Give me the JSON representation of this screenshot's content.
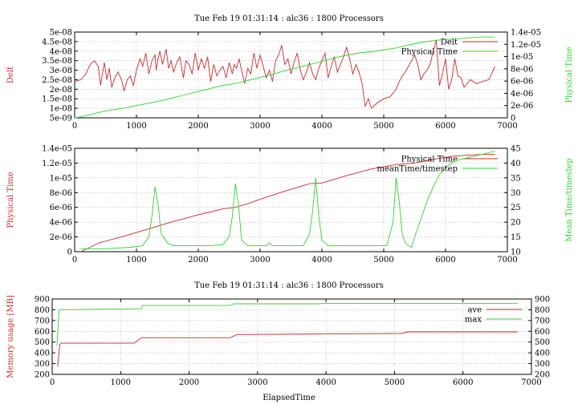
{
  "chart_data": [
    {
      "type": "line",
      "title": "Tue Feb 19 01:31:14 : alc36 : 1800 Processors",
      "xlabel": "",
      "ylabel": "Delt",
      "y2label": "Physical Time",
      "xlim": [
        0,
        7000
      ],
      "ylim": [
        5e-09,
        5e-08
      ],
      "y2lim": [
        0,
        1.4e-05
      ],
      "xticks": [
        "0",
        "1000",
        "2000",
        "3000",
        "4000",
        "5000",
        "6000",
        "7000"
      ],
      "yticks": [
        "5e-09",
        "1e-08",
        "1.5e-08",
        "2e-08",
        "2.5e-08",
        "3e-08",
        "3.5e-08",
        "4e-08",
        "4.5e-08",
        "5e-08"
      ],
      "y2ticks": [
        "0",
        "2e-06",
        "4e-06",
        "6e-06",
        "8e-06",
        "1e-05",
        "1.2e-05",
        "1.4e-05"
      ],
      "legend_position": "top-right",
      "series": [
        {
          "name": "Delt",
          "axis": "y",
          "color": "#cc2a2a",
          "x": [
            0,
            100,
            180,
            250,
            320,
            380,
            420,
            480,
            520,
            560,
            600,
            650,
            700,
            760,
            800,
            850,
            900,
            950,
            1000,
            1030,
            1060,
            1100,
            1150,
            1200,
            1250,
            1300,
            1320,
            1350,
            1380,
            1420,
            1450,
            1480,
            1520,
            1560,
            1600,
            1650,
            1700,
            1760,
            1800,
            1850,
            1900,
            1950,
            2000,
            2050,
            2100,
            2150,
            2200,
            2250,
            2300,
            2350,
            2400,
            2450,
            2500,
            2550,
            2580,
            2620,
            2660,
            2700,
            2750,
            2800,
            2850,
            2900,
            2950,
            3000,
            3050,
            3100,
            3150,
            3200,
            3250,
            3300,
            3350,
            3400,
            3450,
            3500,
            3550,
            3600,
            3650,
            3700,
            3750,
            3800,
            3850,
            3900,
            3950,
            4000,
            4050,
            4100,
            4150,
            4200,
            4250,
            4300,
            4350,
            4400,
            4450,
            4500,
            4550,
            4600,
            4650,
            4700,
            4750,
            4800,
            4900,
            5000,
            5100,
            5200,
            5250,
            5300,
            5350,
            5400,
            5450,
            5500,
            5550,
            5600,
            5650,
            5700,
            5750,
            5800,
            5850,
            5900,
            5950,
            6000,
            6050,
            6100,
            6150,
            6200,
            6250,
            6300,
            6400,
            6500,
            6600,
            6700,
            6800
          ],
          "y": [
            2.4e-08,
            2.5e-08,
            2.8e-08,
            3.3e-08,
            3.5e-08,
            3.2e-08,
            2.2e-08,
            3.4e-08,
            2.5e-08,
            3.1e-08,
            2.1e-08,
            2.6e-08,
            2.9e-08,
            2.5e-08,
            1.9e-08,
            2.5e-08,
            2.7e-08,
            2.2e-08,
            3e-08,
            3.3e-08,
            3.6e-08,
            3.2e-08,
            3.9e-08,
            2.8e-08,
            3.5e-08,
            3.8e-08,
            3e-08,
            3.6e-08,
            4e-08,
            3.3e-08,
            3.7e-08,
            4.1e-08,
            3.1e-08,
            3.5e-08,
            2.9e-08,
            3.4e-08,
            3.7e-08,
            2.6e-08,
            3.5e-08,
            3.3e-08,
            2.8e-08,
            3.9e-08,
            3e-08,
            3.6e-08,
            3.1e-08,
            3.7e-08,
            2.4e-08,
            3.3e-08,
            2.7e-08,
            3e-08,
            3.2e-08,
            2.6e-08,
            3.4e-08,
            2.8e-08,
            3.3e-08,
            3.1e-08,
            3.6e-08,
            3e-08,
            2.3e-08,
            3.1e-08,
            2.8e-08,
            3.9e-08,
            3.1e-08,
            3.8e-08,
            3.2e-08,
            2.6e-08,
            3e-08,
            2.4e-08,
            3.5e-08,
            3.8e-08,
            4.3e-08,
            3.3e-08,
            3.6e-08,
            2.8e-08,
            3.4e-08,
            3.9e-08,
            3e-08,
            2.5e-08,
            2.9e-08,
            3.4e-08,
            2.8e-08,
            2.5e-08,
            3.1e-08,
            3.5e-08,
            3.9e-08,
            2.6e-08,
            3.2e-08,
            3.7e-08,
            2.9e-08,
            3.3e-08,
            3.7e-08,
            4.2e-08,
            3.6e-08,
            2.8e-08,
            3.3e-08,
            2.9e-08,
            2.3e-08,
            1.1e-08,
            1.5e-08,
            1e-08,
            1.3e-08,
            1.5e-08,
            1.6e-08,
            2e-08,
            2.4e-08,
            2.7e-08,
            2.9e-08,
            3.2e-08,
            3.5e-08,
            3.8e-08,
            3.3e-08,
            2.5e-08,
            2.8e-08,
            3e-08,
            3.3e-08,
            4e-08,
            4.6e-08,
            2.2e-08,
            2.8e-08,
            3.6e-08,
            2e-08,
            2.5e-08,
            3.6e-08,
            2.7e-08,
            2.6e-08,
            2.1e-08,
            2.5e-08,
            2.3e-08,
            2.4e-08,
            2.5e-08,
            3.2e-08
          ]
        },
        {
          "name": "Physical Time",
          "axis": "y2",
          "color": "#2bd62b",
          "x": [
            0,
            100,
            200,
            400,
            600,
            800,
            1000,
            1200,
            1400,
            1600,
            1800,
            2000,
            2200,
            2400,
            2600,
            2800,
            3000,
            3200,
            3400,
            3600,
            3800,
            4000,
            4200,
            4400,
            4600,
            4800,
            5000,
            5200,
            5400,
            5600,
            5800,
            6000,
            6200,
            6400,
            6600,
            6800
          ],
          "y": [
            0,
            1.5e-07,
            4e-07,
            9e-07,
            1.3e-06,
            1.6e-06,
            2e-06,
            2.4e-06,
            2.8e-06,
            3.3e-06,
            3.8e-06,
            4.3e-06,
            4.8e-06,
            5.3e-06,
            5.6e-06,
            6.1e-06,
            6.6e-06,
            7.1e-06,
            7.7e-06,
            8.2e-06,
            8.7e-06,
            9.2e-06,
            9.8e-06,
            1.02e-05,
            1.06e-05,
            1.08e-05,
            1.11e-05,
            1.14e-05,
            1.19e-05,
            1.23e-05,
            1.26e-05,
            1.28e-05,
            1.29e-05,
            1.31e-05,
            1.32e-05,
            1.32e-05
          ]
        }
      ]
    },
    {
      "type": "line",
      "title": "",
      "xlabel": "",
      "ylabel": "Physical Time",
      "y2label": "Mean Time/timestep",
      "xlim": [
        0,
        7000
      ],
      "ylim": [
        0,
        1.4e-05
      ],
      "y2lim": [
        10,
        45
      ],
      "xticks": [
        "0",
        "1000",
        "2000",
        "3000",
        "4000",
        "5000",
        "6000",
        "7000"
      ],
      "yticks": [
        "0",
        "2e-06",
        "4e-06",
        "6e-06",
        "8e-06",
        "1e-05",
        "1.2e-05",
        "1.4e-05"
      ],
      "y2ticks": [
        "10",
        "15",
        "20",
        "25",
        "30",
        "35",
        "40",
        "45"
      ],
      "legend_position": "top-right",
      "series": [
        {
          "name": "Physical Time",
          "axis": "y",
          "color": "#cc2a2a",
          "x": [
            100,
            400,
            800,
            1200,
            1600,
            2000,
            2400,
            2600,
            2800,
            3000,
            3400,
            3800,
            4000,
            4400,
            4800,
            5200,
            5500,
            5800,
            6100,
            6400,
            6700,
            6800
          ],
          "y": [
            0,
            1.2e-06,
            2.1e-06,
            3.1e-06,
            4.1e-06,
            5e-06,
            5.8e-06,
            6e-06,
            6.5e-06,
            7.1e-06,
            8.2e-06,
            9.2e-06,
            9.3e-06,
            1.03e-05,
            1.12e-05,
            1.18e-05,
            1.2e-05,
            1.25e-05,
            1.29e-05,
            1.31e-05,
            1.32e-05,
            1.32e-05
          ]
        },
        {
          "name": "meanTime/timestep",
          "axis": "y2",
          "color": "#2bd62b",
          "x": [
            100,
            500,
            900,
            1100,
            1200,
            1250,
            1300,
            1350,
            1400,
            1500,
            1600,
            1800,
            2000,
            2200,
            2400,
            2500,
            2550,
            2600,
            2650,
            2700,
            2800,
            3000,
            3100,
            3150,
            3200,
            3400,
            3600,
            3700,
            3800,
            3850,
            3900,
            3950,
            4000,
            4100,
            4300,
            4500,
            4700,
            4900,
            5050,
            5150,
            5200,
            5250,
            5300,
            5350,
            5400,
            5450,
            5500,
            5600,
            5700,
            5800,
            5900,
            6000,
            6100,
            6200,
            6300,
            6400,
            6500,
            6600,
            6700,
            6800
          ],
          "y": [
            11,
            11,
            11.5,
            12,
            15,
            22,
            32,
            26,
            16,
            13,
            12,
            12,
            12,
            12,
            12.5,
            15,
            22,
            33,
            26,
            14,
            12,
            12,
            12,
            13,
            12,
            12,
            12,
            12,
            16,
            24,
            35,
            22,
            14,
            12,
            12,
            12,
            12,
            12,
            12,
            20,
            35,
            27,
            16,
            13,
            12,
            11.5,
            15,
            21,
            27,
            32,
            36,
            38.5,
            40,
            41,
            41.5,
            42,
            42.5,
            43,
            43.5,
            44
          ]
        }
      ]
    },
    {
      "type": "line",
      "title": "Tue Feb 19 01:31:14 : alc36 : 1800 Processors",
      "xlabel": "ElapsedTime",
      "ylabel": "Memory usage [MB]",
      "y2label": "",
      "xlim": [
        0,
        7000
      ],
      "ylim": [
        200,
        900
      ],
      "y2lim": [
        200,
        900
      ],
      "xticks": [
        "0",
        "1000",
        "2000",
        "3000",
        "4000",
        "5000",
        "6000",
        "7000"
      ],
      "yticks": [
        "200",
        "300",
        "400",
        "500",
        "600",
        "700",
        "800",
        "900"
      ],
      "y2ticks": [
        "200",
        "300",
        "400",
        "500",
        "600",
        "700",
        "800",
        "900"
      ],
      "legend_position": "top-right",
      "series": [
        {
          "name": "ave",
          "axis": "y",
          "color": "#cc2a2a",
          "x": [
            80,
            110,
            140,
            1200,
            1300,
            2600,
            2700,
            4000,
            5100,
            5200,
            6800
          ],
          "y": [
            270,
            480,
            490,
            490,
            540,
            540,
            570,
            575,
            580,
            595,
            595
          ]
        },
        {
          "name": "max",
          "axis": "y",
          "color": "#2bd62b",
          "x": [
            70,
            100,
            120,
            1300,
            1320,
            2600,
            2650,
            3900,
            3950,
            6800
          ],
          "y": [
            470,
            790,
            800,
            810,
            840,
            840,
            855,
            855,
            860,
            860
          ]
        }
      ]
    }
  ]
}
